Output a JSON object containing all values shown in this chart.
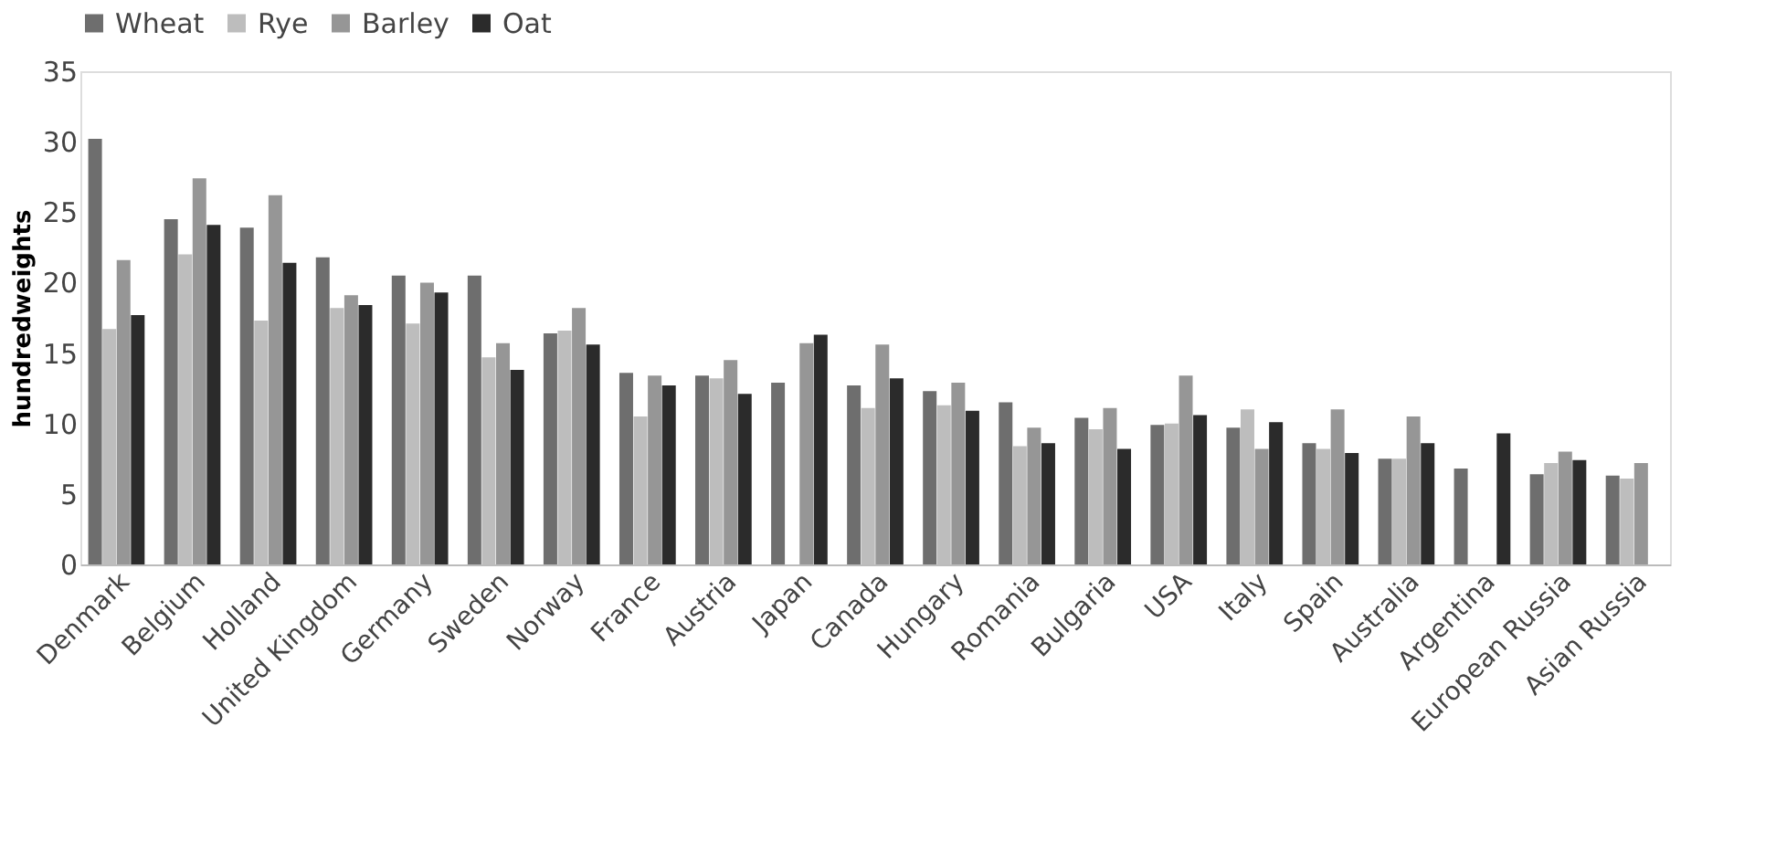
{
  "chart_data": {
    "type": "bar",
    "ylabel": "hundredweights",
    "categories": [
      "Denmark",
      "Belgium",
      "Holland",
      "United Kingdom",
      "Germany",
      "Sweden",
      "Norway",
      "France",
      "Austria",
      "Japan",
      "Canada",
      "Hungary",
      "Romania",
      "Bulgaria",
      "USA",
      "Italy",
      "Spain",
      "Australia",
      "Argentina",
      "European Russia",
      "Asian Russia"
    ],
    "series": [
      {
        "name": "Wheat",
        "color": "#6e6e6e",
        "values": [
          30.2,
          24.5,
          23.9,
          21.8,
          20.5,
          20.5,
          16.4,
          13.6,
          13.4,
          12.9,
          12.7,
          12.3,
          11.5,
          10.4,
          9.9,
          9.7,
          8.6,
          7.5,
          6.8,
          6.4,
          6.3
        ]
      },
      {
        "name": "Rye",
        "color": "#bdbdbd",
        "values": [
          16.7,
          22.0,
          17.3,
          18.2,
          17.1,
          14.7,
          16.6,
          10.5,
          13.2,
          null,
          11.1,
          11.3,
          8.4,
          9.6,
          10.0,
          11.0,
          8.2,
          7.5,
          null,
          7.2,
          6.1
        ]
      },
      {
        "name": "Barley",
        "color": "#969696",
        "values": [
          21.6,
          27.4,
          26.2,
          19.1,
          20.0,
          15.7,
          18.2,
          13.4,
          14.5,
          15.7,
          15.6,
          12.9,
          9.7,
          11.1,
          13.4,
          8.2,
          11.0,
          10.5,
          null,
          8.0,
          7.2
        ]
      },
      {
        "name": "Oat",
        "color": "#2b2b2b",
        "values": [
          17.7,
          24.1,
          21.4,
          18.4,
          19.3,
          13.8,
          15.6,
          12.7,
          12.1,
          16.3,
          13.2,
          10.9,
          8.6,
          8.2,
          10.6,
          10.1,
          7.9,
          8.6,
          9.3,
          7.4,
          null
        ]
      }
    ],
    "ylim": [
      0,
      35
    ],
    "yticks": [
      0,
      5,
      10,
      15,
      20,
      25,
      30,
      35
    ],
    "grid": false,
    "legend": "top"
  }
}
